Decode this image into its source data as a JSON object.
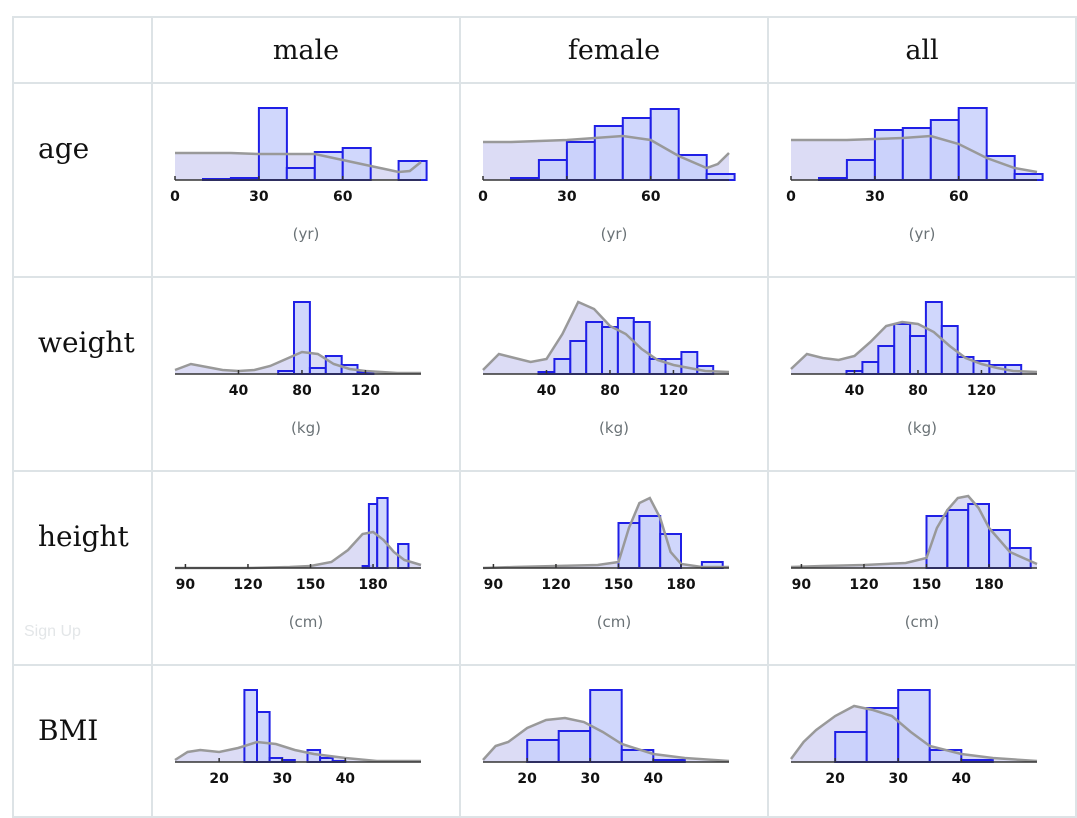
{
  "table": {
    "columns": [
      "male",
      "female",
      "all"
    ],
    "rows": [
      {
        "label": "age",
        "unit": "(yr)"
      },
      {
        "label": "weight",
        "unit": "(kg)"
      },
      {
        "label": "height",
        "unit": "(cm)"
      },
      {
        "label": "BMI",
        "unit": ""
      }
    ]
  },
  "footer": {
    "signup_label": "Sign Up"
  },
  "colors": {
    "bar_fill": "#c8d0fb",
    "bar_stroke": "#1f1fe6",
    "density_fill": "#dcdcf5",
    "density_line": "#999999",
    "axis": "#333333",
    "grid_border": "#dde3e6"
  },
  "chart_data": [
    {
      "variable": "age",
      "group": "male",
      "type": "bar",
      "xlim": [
        0,
        88
      ],
      "xticks": [
        0,
        30,
        60
      ],
      "bins": [
        [
          10,
          20,
          1
        ],
        [
          20,
          30,
          2
        ],
        [
          30,
          40,
          72
        ],
        [
          40,
          50,
          12
        ],
        [
          50,
          60,
          28
        ],
        [
          60,
          70,
          32
        ],
        [
          80,
          90,
          19
        ]
      ],
      "density": [
        [
          0,
          27
        ],
        [
          10,
          27
        ],
        [
          20,
          27
        ],
        [
          30,
          26
        ],
        [
          40,
          26
        ],
        [
          50,
          26
        ],
        [
          60,
          20
        ],
        [
          70,
          14
        ],
        [
          80,
          8
        ],
        [
          84,
          9
        ],
        [
          88,
          18
        ]
      ]
    },
    {
      "variable": "age",
      "group": "female",
      "type": "bar",
      "xlim": [
        0,
        88
      ],
      "xticks": [
        0,
        30,
        60
      ],
      "bins": [
        [
          10,
          20,
          2
        ],
        [
          20,
          30,
          20
        ],
        [
          30,
          40,
          38
        ],
        [
          40,
          50,
          54
        ],
        [
          50,
          60,
          62
        ],
        [
          60,
          70,
          71
        ],
        [
          70,
          80,
          25
        ],
        [
          80,
          90,
          6
        ]
      ],
      "density": [
        [
          0,
          38
        ],
        [
          10,
          38
        ],
        [
          20,
          39
        ],
        [
          30,
          40
        ],
        [
          40,
          42
        ],
        [
          50,
          44
        ],
        [
          60,
          40
        ],
        [
          70,
          24
        ],
        [
          80,
          12
        ],
        [
          84,
          16
        ],
        [
          88,
          27
        ]
      ]
    },
    {
      "variable": "age",
      "group": "all",
      "type": "bar",
      "xlim": [
        0,
        88
      ],
      "xticks": [
        0,
        30,
        60
      ],
      "bins": [
        [
          10,
          20,
          2
        ],
        [
          20,
          30,
          20
        ],
        [
          30,
          40,
          50
        ],
        [
          40,
          50,
          52
        ],
        [
          50,
          60,
          60
        ],
        [
          60,
          70,
          72
        ],
        [
          70,
          80,
          24
        ],
        [
          80,
          90,
          6
        ]
      ],
      "density": [
        [
          0,
          40
        ],
        [
          10,
          40
        ],
        [
          20,
          40
        ],
        [
          30,
          41
        ],
        [
          40,
          42
        ],
        [
          50,
          44
        ],
        [
          60,
          36
        ],
        [
          70,
          22
        ],
        [
          80,
          12
        ],
        [
          88,
          8
        ]
      ]
    },
    {
      "variable": "weight",
      "group": "male",
      "type": "bar",
      "xlim": [
        0,
        155
      ],
      "xticks": [
        40,
        80,
        120
      ],
      "bins": [
        [
          65,
          75,
          3
        ],
        [
          75,
          85,
          72
        ],
        [
          85,
          95,
          6
        ],
        [
          95,
          105,
          18
        ],
        [
          105,
          115,
          9
        ],
        [
          115,
          125,
          2
        ]
      ],
      "density": [
        [
          0,
          4
        ],
        [
          10,
          10
        ],
        [
          20,
          7
        ],
        [
          30,
          4
        ],
        [
          40,
          3
        ],
        [
          50,
          4
        ],
        [
          60,
          8
        ],
        [
          70,
          15
        ],
        [
          80,
          22
        ],
        [
          90,
          20
        ],
        [
          100,
          10
        ],
        [
          110,
          5
        ],
        [
          120,
          3
        ],
        [
          130,
          2
        ],
        [
          140,
          1
        ],
        [
          155,
          1
        ]
      ]
    },
    {
      "variable": "weight",
      "group": "female",
      "type": "bar",
      "xlim": [
        0,
        155
      ],
      "xticks": [
        40,
        80,
        120
      ],
      "bins": [
        [
          35,
          45,
          2
        ],
        [
          45,
          55,
          15
        ],
        [
          55,
          65,
          33
        ],
        [
          65,
          75,
          52
        ],
        [
          75,
          85,
          47
        ],
        [
          85,
          95,
          56
        ],
        [
          95,
          105,
          52
        ],
        [
          105,
          115,
          15
        ],
        [
          115,
          125,
          15
        ],
        [
          125,
          135,
          22
        ],
        [
          135,
          145,
          8
        ]
      ],
      "density": [
        [
          0,
          4
        ],
        [
          10,
          20
        ],
        [
          20,
          16
        ],
        [
          30,
          12
        ],
        [
          40,
          15
        ],
        [
          50,
          40
        ],
        [
          60,
          72
        ],
        [
          70,
          65
        ],
        [
          80,
          48
        ],
        [
          90,
          40
        ],
        [
          100,
          25
        ],
        [
          110,
          14
        ],
        [
          120,
          9
        ],
        [
          130,
          6
        ],
        [
          140,
          3
        ],
        [
          155,
          2
        ]
      ]
    },
    {
      "variable": "weight",
      "group": "all",
      "type": "bar",
      "xlim": [
        0,
        155
      ],
      "xticks": [
        40,
        80,
        120
      ],
      "bins": [
        [
          35,
          45,
          3
        ],
        [
          45,
          55,
          12
        ],
        [
          55,
          65,
          28
        ],
        [
          65,
          75,
          50
        ],
        [
          75,
          85,
          38
        ],
        [
          85,
          95,
          72
        ],
        [
          95,
          105,
          48
        ],
        [
          105,
          115,
          17
        ],
        [
          115,
          125,
          13
        ],
        [
          125,
          135,
          9
        ],
        [
          135,
          145,
          9
        ]
      ],
      "density": [
        [
          0,
          5
        ],
        [
          10,
          20
        ],
        [
          20,
          16
        ],
        [
          30,
          14
        ],
        [
          40,
          18
        ],
        [
          50,
          32
        ],
        [
          60,
          48
        ],
        [
          70,
          52
        ],
        [
          80,
          50
        ],
        [
          90,
          42
        ],
        [
          100,
          28
        ],
        [
          110,
          16
        ],
        [
          120,
          10
        ],
        [
          130,
          6
        ],
        [
          140,
          3
        ],
        [
          155,
          2
        ]
      ]
    },
    {
      "variable": "height",
      "group": "male",
      "type": "bar",
      "xlim": [
        85,
        203
      ],
      "xticks": [
        90,
        120,
        150,
        180
      ],
      "bins": [
        [
          175,
          180,
          2
        ],
        [
          178,
          182,
          64
        ],
        [
          182,
          187,
          70
        ],
        [
          192,
          197,
          24
        ]
      ],
      "density": [
        [
          85,
          0
        ],
        [
          100,
          0
        ],
        [
          120,
          0
        ],
        [
          140,
          1
        ],
        [
          150,
          2
        ],
        [
          160,
          6
        ],
        [
          168,
          18
        ],
        [
          175,
          34
        ],
        [
          180,
          36
        ],
        [
          185,
          28
        ],
        [
          190,
          16
        ],
        [
          195,
          8
        ],
        [
          203,
          3
        ]
      ]
    },
    {
      "variable": "height",
      "group": "female",
      "type": "bar",
      "xlim": [
        85,
        203
      ],
      "xticks": [
        90,
        120,
        150,
        180
      ],
      "bins": [
        [
          150,
          160,
          45
        ],
        [
          160,
          170,
          52
        ],
        [
          170,
          180,
          34
        ],
        [
          190,
          200,
          6
        ]
      ],
      "density": [
        [
          85,
          0
        ],
        [
          100,
          1
        ],
        [
          120,
          2
        ],
        [
          140,
          3
        ],
        [
          150,
          6
        ],
        [
          155,
          40
        ],
        [
          160,
          65
        ],
        [
          165,
          70
        ],
        [
          170,
          50
        ],
        [
          175,
          16
        ],
        [
          180,
          4
        ],
        [
          190,
          1
        ],
        [
          203,
          1
        ]
      ]
    },
    {
      "variable": "height",
      "group": "all",
      "type": "bar",
      "xlim": [
        85,
        203
      ],
      "xticks": [
        90,
        120,
        150,
        180
      ],
      "bins": [
        [
          150,
          160,
          52
        ],
        [
          160,
          170,
          58
        ],
        [
          170,
          180,
          64
        ],
        [
          180,
          190,
          38
        ],
        [
          190,
          200,
          20
        ]
      ],
      "density": [
        [
          85,
          1
        ],
        [
          100,
          2
        ],
        [
          120,
          3
        ],
        [
          140,
          5
        ],
        [
          150,
          10
        ],
        [
          155,
          40
        ],
        [
          160,
          58
        ],
        [
          165,
          70
        ],
        [
          170,
          72
        ],
        [
          175,
          60
        ],
        [
          180,
          40
        ],
        [
          190,
          16
        ],
        [
          203,
          4
        ]
      ]
    },
    {
      "variable": "BMI",
      "group": "male",
      "type": "bar",
      "xlim": [
        13,
        52
      ],
      "xticks": [
        20,
        30,
        40
      ],
      "bins": [
        [
          24,
          26,
          72
        ],
        [
          26,
          28,
          50
        ],
        [
          28,
          30,
          4
        ],
        [
          30,
          32,
          2
        ],
        [
          34,
          36,
          12
        ],
        [
          36,
          38,
          4
        ],
        [
          38,
          40,
          1
        ]
      ],
      "density": [
        [
          13,
          2
        ],
        [
          15,
          10
        ],
        [
          17,
          12
        ],
        [
          20,
          10
        ],
        [
          23,
          14
        ],
        [
          26,
          20
        ],
        [
          29,
          18
        ],
        [
          32,
          12
        ],
        [
          35,
          8
        ],
        [
          40,
          4
        ],
        [
          45,
          1
        ],
        [
          52,
          1
        ]
      ]
    },
    {
      "variable": "BMI",
      "group": "female",
      "type": "bar",
      "xlim": [
        13,
        52
      ],
      "xticks": [
        20,
        30,
        40
      ],
      "bins": [
        [
          20,
          25,
          22
        ],
        [
          25,
          30,
          31
        ],
        [
          30,
          35,
          72
        ],
        [
          35,
          40,
          12
        ],
        [
          40,
          45,
          2
        ]
      ],
      "density": [
        [
          13,
          2
        ],
        [
          15,
          16
        ],
        [
          17,
          20
        ],
        [
          20,
          34
        ],
        [
          23,
          42
        ],
        [
          26,
          44
        ],
        [
          29,
          40
        ],
        [
          32,
          30
        ],
        [
          35,
          18
        ],
        [
          40,
          8
        ],
        [
          45,
          4
        ],
        [
          52,
          1
        ]
      ]
    },
    {
      "variable": "BMI",
      "group": "all",
      "type": "bar",
      "xlim": [
        13,
        52
      ],
      "xticks": [
        20,
        30,
        40
      ],
      "bins": [
        [
          20,
          25,
          30
        ],
        [
          25,
          30,
          54
        ],
        [
          30,
          35,
          72
        ],
        [
          35,
          40,
          12
        ],
        [
          40,
          45,
          2
        ]
      ],
      "density": [
        [
          13,
          3
        ],
        [
          15,
          20
        ],
        [
          17,
          32
        ],
        [
          20,
          46
        ],
        [
          23,
          56
        ],
        [
          26,
          52
        ],
        [
          29,
          46
        ],
        [
          32,
          30
        ],
        [
          35,
          16
        ],
        [
          40,
          8
        ],
        [
          45,
          4
        ],
        [
          52,
          1
        ]
      ]
    }
  ]
}
